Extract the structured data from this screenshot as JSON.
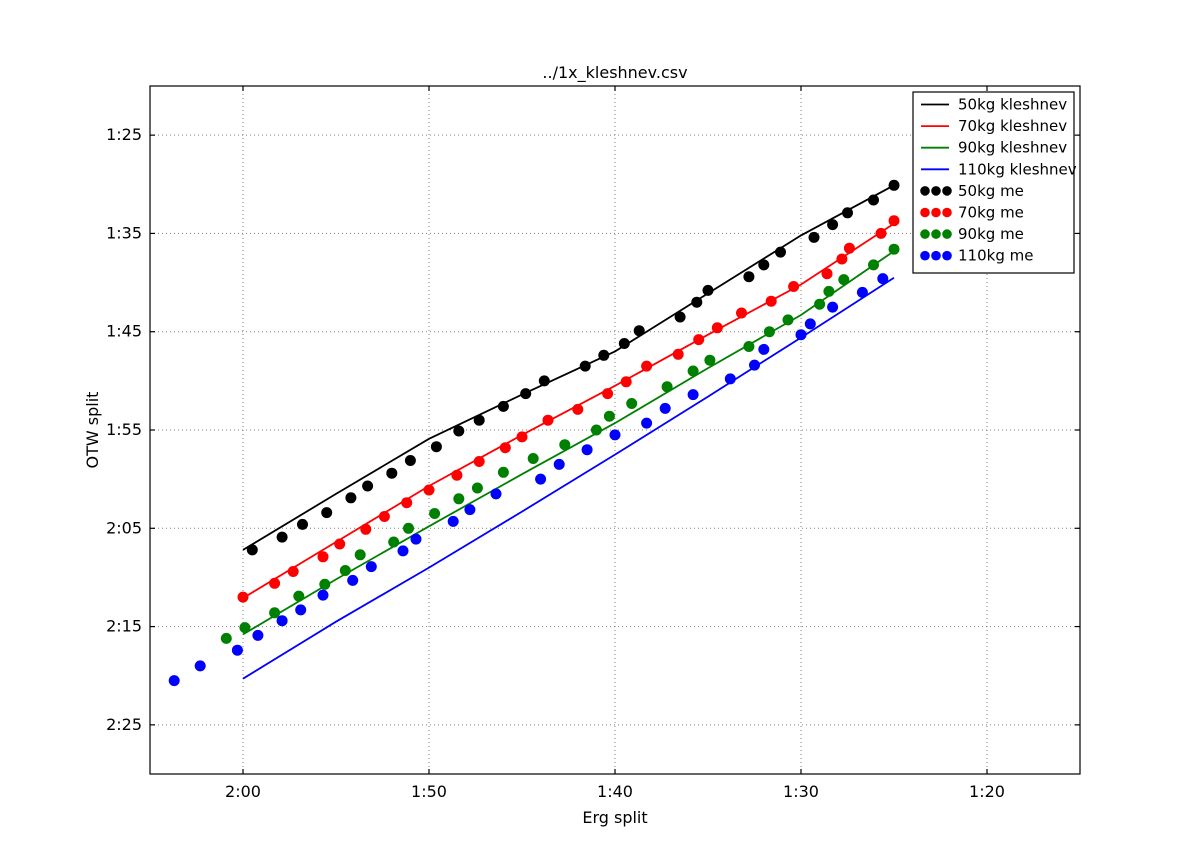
{
  "title": "../1x_kleshnev.csv",
  "chart_data": {
    "type": "line+scatter",
    "title": "../1x_kleshnev.csv",
    "xlabel": "Erg split",
    "ylabel": "OTW split",
    "grid": "dotted",
    "grid_color": "#7f7f7f",
    "frame_color": "#000000",
    "legend_position": "upper right",
    "x_axis": {
      "units": "seconds per 500m",
      "range_s": [
        125,
        75
      ],
      "reversed": true,
      "ticks_s": [
        120,
        110,
        100,
        90,
        80
      ],
      "tick_labels": [
        "2:00",
        "1:50",
        "1:40",
        "1:30",
        "1:20"
      ]
    },
    "y_axis": {
      "units": "seconds per 500m",
      "range_s": [
        80,
        150
      ],
      "inverted": true,
      "ticks_s": [
        85,
        95,
        105,
        115,
        125,
        135,
        145
      ],
      "tick_labels": [
        "1:25",
        "1:35",
        "1:45",
        "1:55",
        "2:05",
        "2:15",
        "2:25"
      ]
    },
    "line_series": [
      {
        "name": "50kg kleshnev",
        "color": "#000000",
        "style": "solid",
        "points": [
          [
            120,
            127.2
          ],
          [
            115,
            121.5
          ],
          [
            110,
            115.9
          ],
          [
            105,
            111.4
          ],
          [
            100,
            107.0
          ],
          [
            95,
            101.1
          ],
          [
            90,
            95.2
          ],
          [
            85,
            90.1
          ]
        ]
      },
      {
        "name": "70kg kleshnev",
        "color": "#ff0000",
        "style": "solid",
        "points": [
          [
            120,
            132.1
          ],
          [
            115,
            126.4
          ],
          [
            110,
            120.7
          ],
          [
            105,
            115.5
          ],
          [
            100,
            110.5
          ],
          [
            95,
            105.3
          ],
          [
            90,
            100.2
          ],
          [
            85,
            94.0
          ]
        ]
      },
      {
        "name": "90kg kleshnev",
        "color": "#008000",
        "style": "solid",
        "points": [
          [
            120,
            135.8
          ],
          [
            115,
            130.2
          ],
          [
            110,
            124.8
          ],
          [
            105,
            119.5
          ],
          [
            100,
            114.3
          ],
          [
            95,
            108.7
          ],
          [
            90,
            103.3
          ],
          [
            85,
            96.8
          ]
        ]
      },
      {
        "name": "110kg kleshnev",
        "color": "#0000ff",
        "style": "solid",
        "points": [
          [
            120,
            140.3
          ],
          [
            115,
            134.5
          ],
          [
            110,
            129.0
          ],
          [
            105,
            123.3
          ],
          [
            100,
            117.5
          ],
          [
            95,
            111.6
          ],
          [
            90,
            105.6
          ],
          [
            85,
            99.5
          ]
        ]
      }
    ],
    "scatter_series": [
      {
        "name": "50kg me",
        "color": "#000000",
        "marker": "circle",
        "points": [
          [
            119.5,
            127.2
          ],
          [
            117.9,
            125.9
          ],
          [
            116.8,
            124.6
          ],
          [
            115.5,
            123.4
          ],
          [
            114.2,
            121.9
          ],
          [
            113.3,
            120.7
          ],
          [
            112.0,
            119.4
          ],
          [
            111.0,
            118.1
          ],
          [
            109.6,
            116.7
          ],
          [
            108.4,
            115.1
          ],
          [
            107.3,
            114.0
          ],
          [
            106.0,
            112.6
          ],
          [
            104.8,
            111.3
          ],
          [
            103.8,
            110.0
          ],
          [
            101.6,
            108.5
          ],
          [
            100.6,
            107.4
          ],
          [
            99.5,
            106.2
          ],
          [
            98.7,
            104.9
          ],
          [
            96.5,
            103.5
          ],
          [
            95.6,
            102.0
          ],
          [
            95.0,
            100.8
          ],
          [
            92.8,
            99.4
          ],
          [
            92.0,
            98.2
          ],
          [
            91.1,
            96.9
          ],
          [
            89.3,
            95.4
          ],
          [
            88.3,
            94.1
          ],
          [
            87.5,
            92.9
          ],
          [
            86.1,
            91.6
          ],
          [
            85.0,
            90.1
          ]
        ]
      },
      {
        "name": "70kg me",
        "color": "#ff0000",
        "marker": "circle",
        "points": [
          [
            120.0,
            132.0
          ],
          [
            118.3,
            130.6
          ],
          [
            117.3,
            129.4
          ],
          [
            115.7,
            127.9
          ],
          [
            114.8,
            126.6
          ],
          [
            113.4,
            125.1
          ],
          [
            112.4,
            123.8
          ],
          [
            111.2,
            122.4
          ],
          [
            110.0,
            121.1
          ],
          [
            108.5,
            119.6
          ],
          [
            107.3,
            118.2
          ],
          [
            105.9,
            116.8
          ],
          [
            105.0,
            115.7
          ],
          [
            103.6,
            114.0
          ],
          [
            102.0,
            112.9
          ],
          [
            100.4,
            111.3
          ],
          [
            99.4,
            110.1
          ],
          [
            98.3,
            108.5
          ],
          [
            96.6,
            107.3
          ],
          [
            95.5,
            105.8
          ],
          [
            94.5,
            104.6
          ],
          [
            93.2,
            103.1
          ],
          [
            91.6,
            101.9
          ],
          [
            90.4,
            100.4
          ],
          [
            88.6,
            99.1
          ],
          [
            87.8,
            97.6
          ],
          [
            87.4,
            96.5
          ],
          [
            85.7,
            95.0
          ],
          [
            85.0,
            93.7
          ]
        ]
      },
      {
        "name": "90kg me",
        "color": "#008000",
        "marker": "circle",
        "points": [
          [
            120.9,
            136.2
          ],
          [
            119.9,
            135.1
          ],
          [
            118.3,
            133.6
          ],
          [
            117.0,
            131.9
          ],
          [
            115.6,
            130.7
          ],
          [
            114.5,
            129.3
          ],
          [
            113.7,
            127.7
          ],
          [
            111.9,
            126.4
          ],
          [
            111.1,
            125.0
          ],
          [
            109.7,
            123.5
          ],
          [
            108.4,
            122.0
          ],
          [
            107.4,
            120.9
          ],
          [
            106.0,
            119.3
          ],
          [
            104.4,
            117.9
          ],
          [
            102.7,
            116.5
          ],
          [
            101.0,
            115.0
          ],
          [
            100.3,
            113.6
          ],
          [
            99.1,
            112.3
          ],
          [
            97.2,
            110.6
          ],
          [
            95.8,
            109.0
          ],
          [
            94.9,
            107.9
          ],
          [
            92.8,
            106.5
          ],
          [
            91.7,
            105.0
          ],
          [
            90.7,
            103.8
          ],
          [
            89.0,
            102.2
          ],
          [
            88.5,
            100.9
          ],
          [
            87.7,
            99.7
          ],
          [
            86.1,
            98.2
          ],
          [
            85.0,
            96.6
          ]
        ]
      },
      {
        "name": "110kg me",
        "color": "#0000ff",
        "marker": "circle",
        "points": [
          [
            123.7,
            140.5
          ],
          [
            122.3,
            139.0
          ],
          [
            120.3,
            137.4
          ],
          [
            119.2,
            135.9
          ],
          [
            117.9,
            134.4
          ],
          [
            116.9,
            133.3
          ],
          [
            115.7,
            131.8
          ],
          [
            114.1,
            130.3
          ],
          [
            113.1,
            128.9
          ],
          [
            111.4,
            127.3
          ],
          [
            110.7,
            126.1
          ],
          [
            108.7,
            124.3
          ],
          [
            107.8,
            123.1
          ],
          [
            106.4,
            121.5
          ],
          [
            104.0,
            120.0
          ],
          [
            103.0,
            118.5
          ],
          [
            101.5,
            117.0
          ],
          [
            100.0,
            115.5
          ],
          [
            98.3,
            114.3
          ],
          [
            97.3,
            112.8
          ],
          [
            95.8,
            111.4
          ],
          [
            93.8,
            109.8
          ],
          [
            92.5,
            108.4
          ],
          [
            92.0,
            106.8
          ],
          [
            90.0,
            105.3
          ],
          [
            89.5,
            104.2
          ],
          [
            88.3,
            102.5
          ],
          [
            86.7,
            101.0
          ],
          [
            85.6,
            99.6
          ]
        ]
      }
    ]
  }
}
